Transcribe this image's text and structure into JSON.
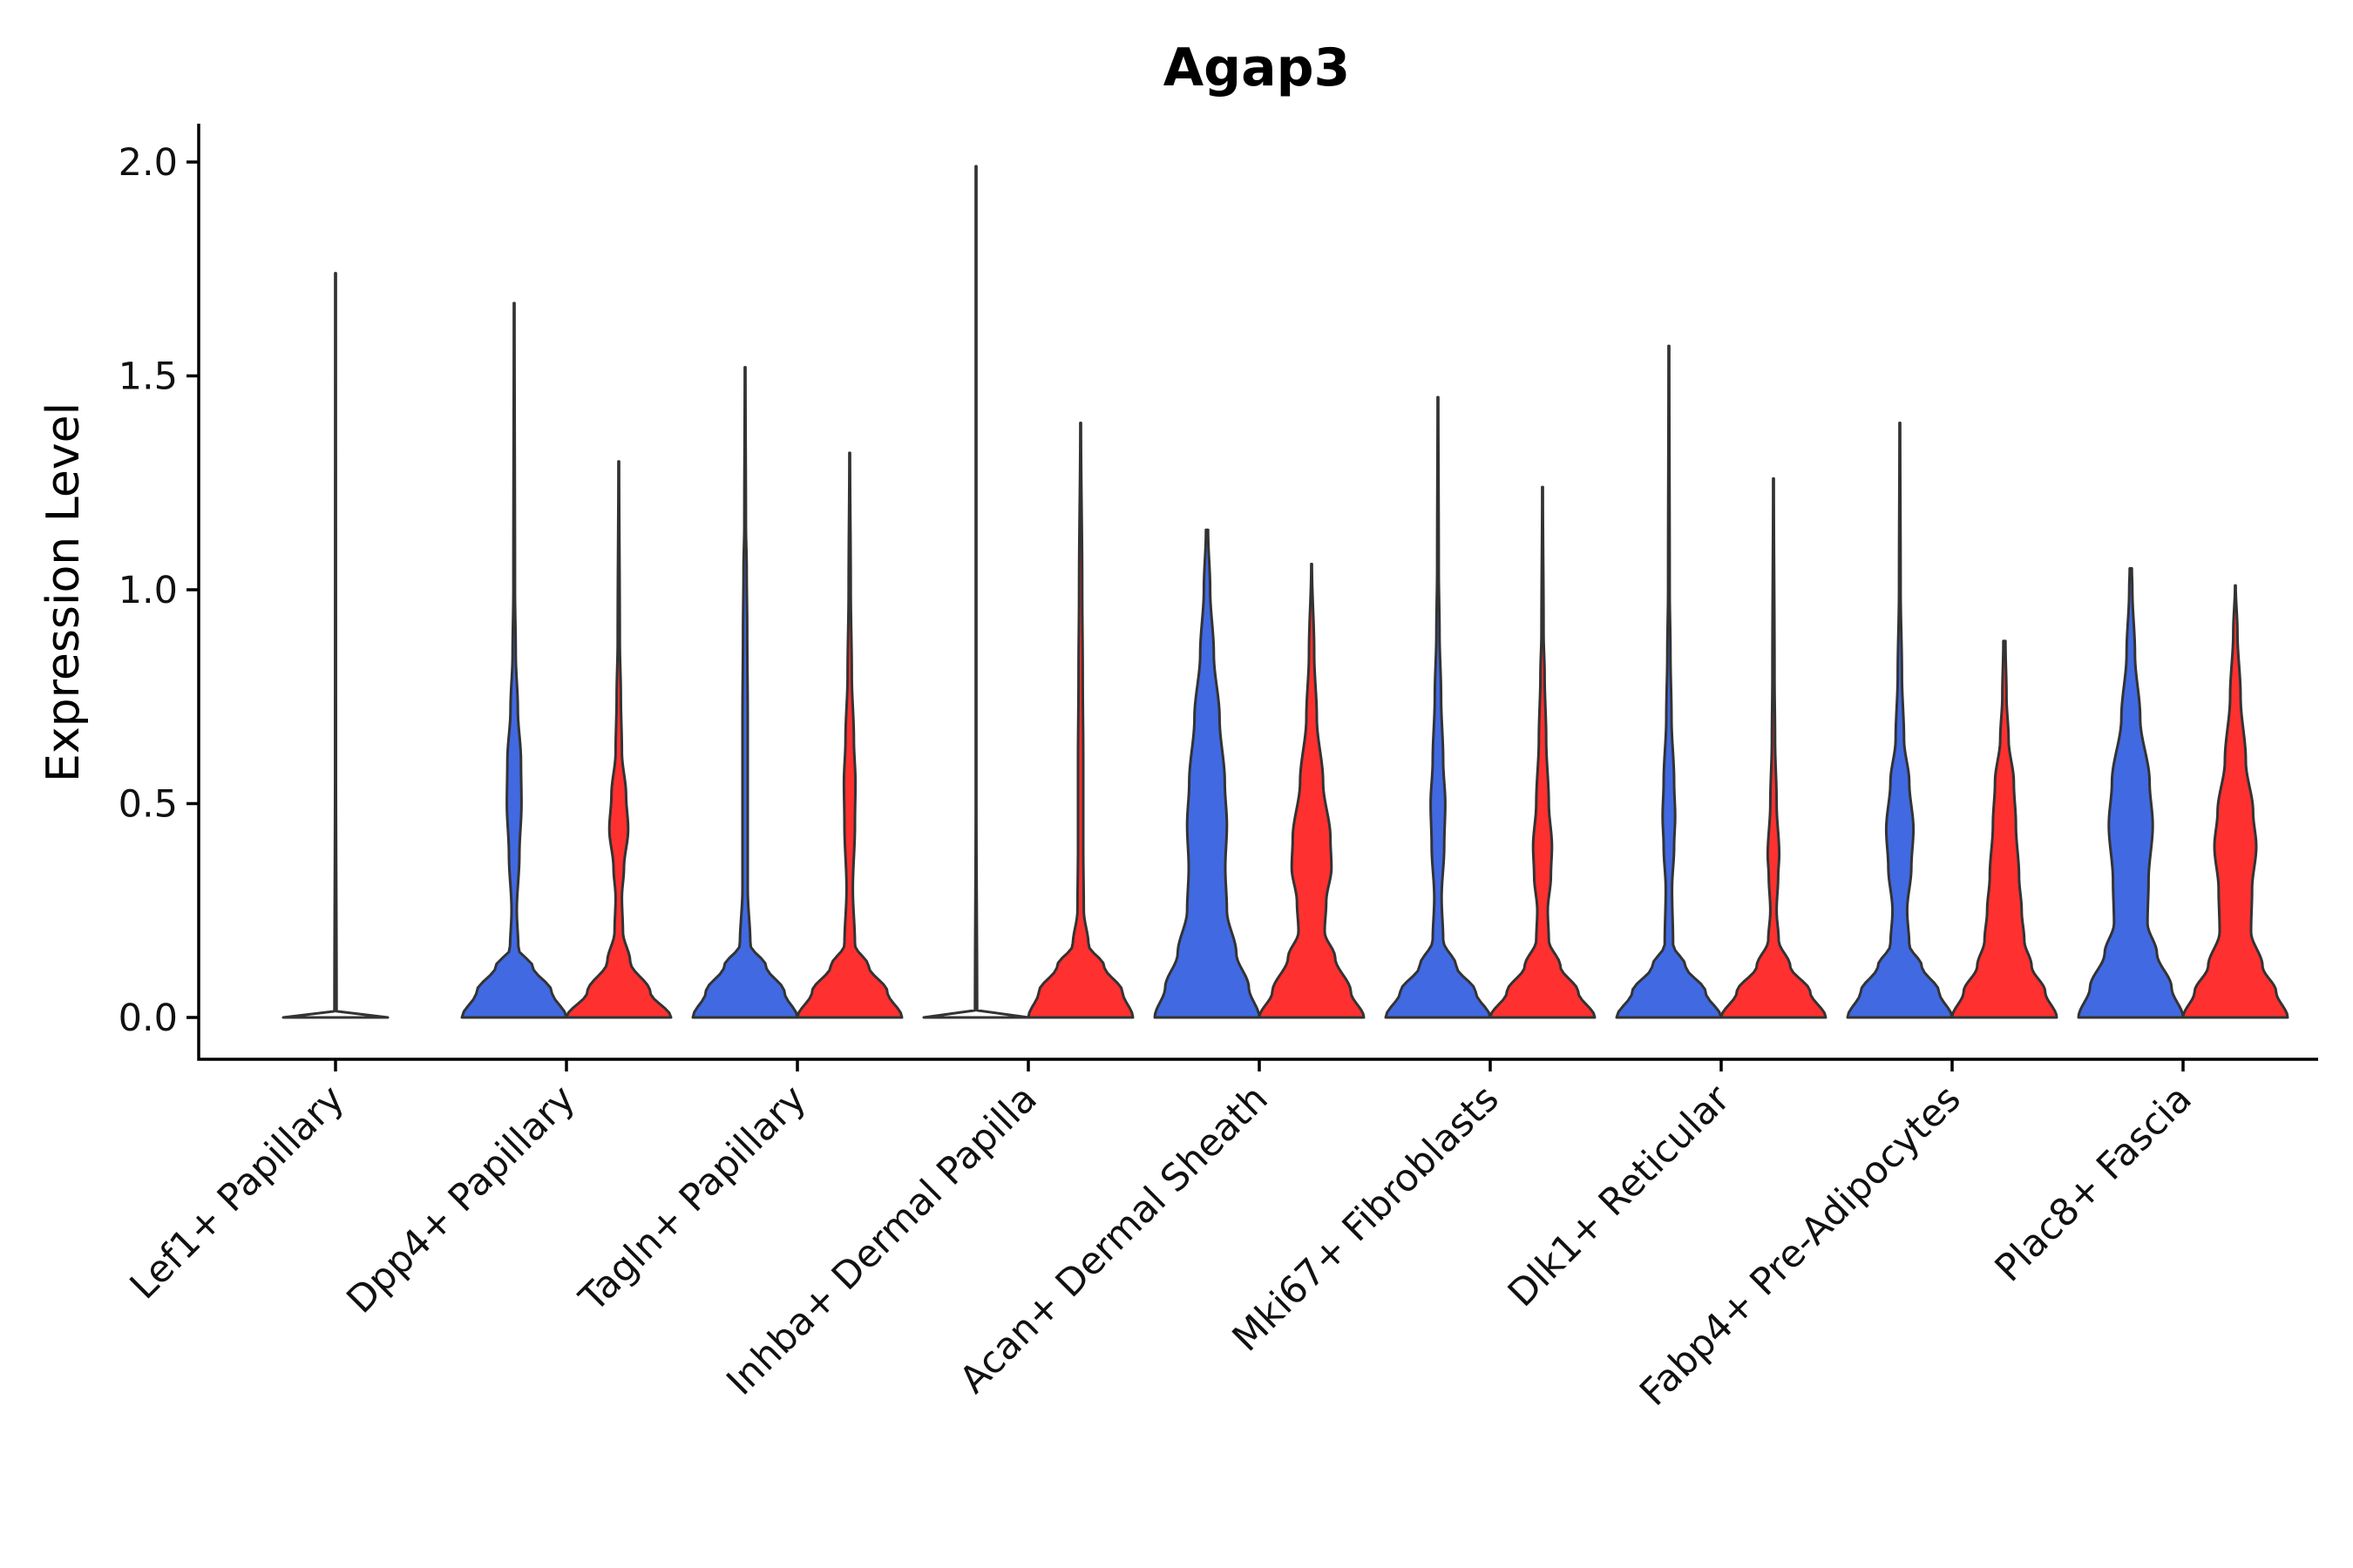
{
  "chart_data": {
    "type": "violin",
    "title": "Agap3",
    "xlabel": "",
    "ylabel": "Expression Level",
    "ylim": [
      -0.1,
      2.1
    ],
    "yticks": [
      "0.0",
      "0.5",
      "1.0",
      "1.5",
      "2.0"
    ],
    "legend": "none",
    "series_colors": [
      "#4169E1",
      "#FF3030"
    ],
    "categories": [
      {
        "label": "Lef1+ Papillary",
        "violins": [
          {
            "max": 1.74,
            "fill": "#FFFFFF",
            "profile": [
              [
                0,
                1
              ],
              [
                0.004,
                0.15
              ],
              [
                0.015,
                0.02
              ],
              [
                0.6,
                0.008
              ],
              [
                1.74,
                0.006
              ]
            ]
          }
        ]
      },
      {
        "label": "Dpp4+ Papillary",
        "violins": [
          {
            "max": 1.67,
            "fill": "#4169E1",
            "profile": [
              [
                0,
                1
              ],
              [
                0.06,
                0.72
              ],
              [
                0.12,
                0.35
              ],
              [
                0.16,
                0.08
              ],
              [
                0.25,
                0.05
              ],
              [
                0.38,
                0.1
              ],
              [
                0.5,
                0.14
              ],
              [
                0.6,
                0.13
              ],
              [
                0.72,
                0.07
              ],
              [
                0.85,
                0.03
              ],
              [
                1.0,
                0.015
              ],
              [
                1.67,
                0.006
              ]
            ]
          },
          {
            "max": 1.3,
            "fill": "#FF3030",
            "profile": [
              [
                0,
                1
              ],
              [
                0.06,
                0.6
              ],
              [
                0.13,
                0.22
              ],
              [
                0.2,
                0.08
              ],
              [
                0.28,
                0.06
              ],
              [
                0.35,
                0.1
              ],
              [
                0.44,
                0.18
              ],
              [
                0.52,
                0.14
              ],
              [
                0.62,
                0.06
              ],
              [
                0.75,
                0.04
              ],
              [
                0.88,
                0.02
              ],
              [
                1.3,
                0.006
              ]
            ]
          }
        ]
      },
      {
        "label": "Tagln+ Papillary",
        "violins": [
          {
            "max": 1.52,
            "fill": "#4169E1",
            "profile": [
              [
                0,
                1
              ],
              [
                0.06,
                0.75
              ],
              [
                0.12,
                0.4
              ],
              [
                0.17,
                0.1
              ],
              [
                0.3,
                0.05
              ],
              [
                0.5,
                0.05
              ],
              [
                0.7,
                0.05
              ],
              [
                0.9,
                0.04
              ],
              [
                1.05,
                0.03
              ],
              [
                1.15,
                0.015
              ],
              [
                1.52,
                0.006
              ]
            ]
          },
          {
            "max": 1.32,
            "fill": "#FF3030",
            "profile": [
              [
                0,
                1
              ],
              [
                0.06,
                0.72
              ],
              [
                0.12,
                0.36
              ],
              [
                0.17,
                0.1
              ],
              [
                0.3,
                0.06
              ],
              [
                0.45,
                0.1
              ],
              [
                0.55,
                0.11
              ],
              [
                0.65,
                0.08
              ],
              [
                0.8,
                0.04
              ],
              [
                1.0,
                0.02
              ],
              [
                1.32,
                0.006
              ]
            ]
          }
        ]
      },
      {
        "label": "Inhba+ Dermal Papilla",
        "violins": [
          {
            "max": 1.99,
            "fill": "#FFFFFF",
            "profile": [
              [
                0,
                1
              ],
              [
                0.004,
                0.1
              ],
              [
                0.012,
                0.02
              ],
              [
                0.5,
                0.006
              ],
              [
                1.99,
                0.006
              ]
            ]
          },
          {
            "max": 1.39,
            "fill": "#FF3030",
            "profile": [
              [
                0,
                1
              ],
              [
                0.06,
                0.8
              ],
              [
                0.12,
                0.45
              ],
              [
                0.17,
                0.15
              ],
              [
                0.25,
                0.06
              ],
              [
                0.4,
                0.05
              ],
              [
                0.6,
                0.05
              ],
              [
                0.8,
                0.04
              ],
              [
                1.0,
                0.03
              ],
              [
                1.39,
                0.006
              ]
            ]
          }
        ]
      },
      {
        "label": "Acan+ Dermal Sheath",
        "violins": [
          {
            "max": 1.14,
            "fill": "#4169E1",
            "profile": [
              [
                0,
                1
              ],
              [
                0.07,
                0.8
              ],
              [
                0.15,
                0.56
              ],
              [
                0.25,
                0.38
              ],
              [
                0.35,
                0.35
              ],
              [
                0.45,
                0.38
              ],
              [
                0.55,
                0.34
              ],
              [
                0.7,
                0.24
              ],
              [
                0.85,
                0.13
              ],
              [
                1.0,
                0.06
              ],
              [
                1.14,
                0.02
              ]
            ]
          },
          {
            "max": 1.06,
            "fill": "#FF3030",
            "profile": [
              [
                0,
                1
              ],
              [
                0.06,
                0.75
              ],
              [
                0.14,
                0.45
              ],
              [
                0.2,
                0.25
              ],
              [
                0.27,
                0.28
              ],
              [
                0.35,
                0.38
              ],
              [
                0.42,
                0.36
              ],
              [
                0.55,
                0.22
              ],
              [
                0.7,
                0.1
              ],
              [
                0.85,
                0.05
              ],
              [
                1.06,
                0.006
              ]
            ]
          }
        ]
      },
      {
        "label": "Mki67+ Fibroblasts",
        "violins": [
          {
            "max": 1.45,
            "fill": "#4169E1",
            "profile": [
              [
                0,
                1
              ],
              [
                0.06,
                0.72
              ],
              [
                0.12,
                0.35
              ],
              [
                0.18,
                0.1
              ],
              [
                0.28,
                0.07
              ],
              [
                0.4,
                0.12
              ],
              [
                0.5,
                0.14
              ],
              [
                0.6,
                0.1
              ],
              [
                0.75,
                0.06
              ],
              [
                0.9,
                0.03
              ],
              [
                1.05,
                0.015
              ],
              [
                1.45,
                0.006
              ]
            ]
          },
          {
            "max": 1.24,
            "fill": "#FF3030",
            "profile": [
              [
                0,
                1
              ],
              [
                0.06,
                0.68
              ],
              [
                0.12,
                0.34
              ],
              [
                0.18,
                0.12
              ],
              [
                0.25,
                0.1
              ],
              [
                0.33,
                0.16
              ],
              [
                0.4,
                0.18
              ],
              [
                0.5,
                0.12
              ],
              [
                0.65,
                0.07
              ],
              [
                0.8,
                0.04
              ],
              [
                0.9,
                0.02
              ],
              [
                1.24,
                0.006
              ]
            ]
          }
        ]
      },
      {
        "label": "Dlk1+ Reticular",
        "violins": [
          {
            "max": 1.57,
            "fill": "#4169E1",
            "profile": [
              [
                0,
                1
              ],
              [
                0.06,
                0.7
              ],
              [
                0.12,
                0.32
              ],
              [
                0.17,
                0.08
              ],
              [
                0.3,
                0.06
              ],
              [
                0.4,
                0.1
              ],
              [
                0.47,
                0.12
              ],
              [
                0.55,
                0.1
              ],
              [
                0.7,
                0.05
              ],
              [
                0.85,
                0.03
              ],
              [
                1.0,
                0.015
              ],
              [
                1.57,
                0.006
              ]
            ]
          },
          {
            "max": 1.26,
            "fill": "#FF3030",
            "profile": [
              [
                0,
                1
              ],
              [
                0.06,
                0.7
              ],
              [
                0.12,
                0.32
              ],
              [
                0.18,
                0.1
              ],
              [
                0.25,
                0.06
              ],
              [
                0.33,
                0.09
              ],
              [
                0.38,
                0.11
              ],
              [
                0.5,
                0.06
              ],
              [
                0.65,
                0.03
              ],
              [
                0.8,
                0.02
              ],
              [
                1.26,
                0.006
              ]
            ]
          }
        ]
      },
      {
        "label": "Fabp4+ Pre-Adipocytes",
        "violins": [
          {
            "max": 1.39,
            "fill": "#4169E1",
            "profile": [
              [
                0,
                1
              ],
              [
                0.06,
                0.75
              ],
              [
                0.12,
                0.42
              ],
              [
                0.17,
                0.18
              ],
              [
                0.25,
                0.14
              ],
              [
                0.35,
                0.22
              ],
              [
                0.44,
                0.26
              ],
              [
                0.55,
                0.18
              ],
              [
                0.65,
                0.08
              ],
              [
                0.8,
                0.04
              ],
              [
                1.0,
                0.015
              ],
              [
                1.39,
                0.006
              ]
            ]
          },
          {
            "max": 0.88,
            "fill": "#FF3030",
            "profile": [
              [
                0,
                1
              ],
              [
                0.06,
                0.78
              ],
              [
                0.12,
                0.52
              ],
              [
                0.18,
                0.38
              ],
              [
                0.25,
                0.33
              ],
              [
                0.33,
                0.28
              ],
              [
                0.45,
                0.22
              ],
              [
                0.55,
                0.18
              ],
              [
                0.65,
                0.08
              ],
              [
                0.75,
                0.04
              ],
              [
                0.88,
                0.02
              ]
            ]
          }
        ]
      },
      {
        "label": "Plac8+ Fascia",
        "violins": [
          {
            "max": 1.05,
            "fill": "#4169E1",
            "profile": [
              [
                0,
                1
              ],
              [
                0.07,
                0.78
              ],
              [
                0.15,
                0.5
              ],
              [
                0.22,
                0.32
              ],
              [
                0.32,
                0.34
              ],
              [
                0.45,
                0.42
              ],
              [
                0.55,
                0.36
              ],
              [
                0.7,
                0.18
              ],
              [
                0.85,
                0.08
              ],
              [
                1.0,
                0.03
              ],
              [
                1.05,
                0.02
              ]
            ]
          },
          {
            "max": 1.01,
            "fill": "#FF3030",
            "profile": [
              [
                0,
                1
              ],
              [
                0.06,
                0.78
              ],
              [
                0.12,
                0.52
              ],
              [
                0.2,
                0.3
              ],
              [
                0.3,
                0.32
              ],
              [
                0.4,
                0.4
              ],
              [
                0.48,
                0.34
              ],
              [
                0.6,
                0.2
              ],
              [
                0.75,
                0.1
              ],
              [
                0.9,
                0.04
              ],
              [
                1.01,
                0.006
              ]
            ]
          }
        ]
      }
    ]
  }
}
